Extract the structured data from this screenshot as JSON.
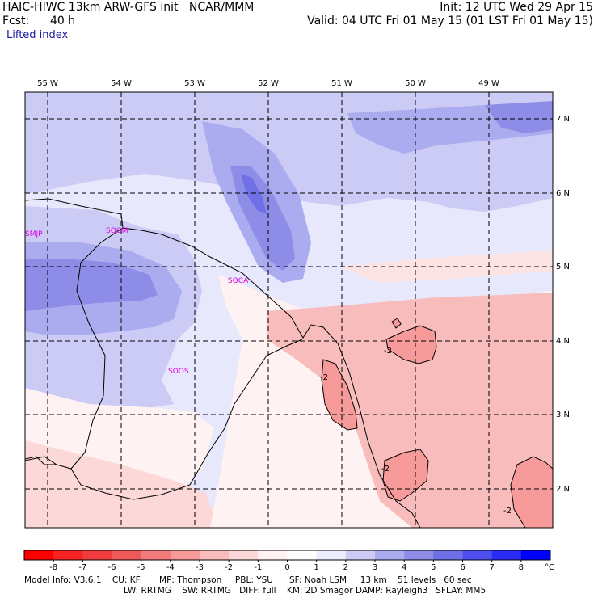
{
  "header": {
    "model": "HAIC-HIWC 13km ARW-GFS init   NCAR/MMM",
    "init": "Init: 12 UTC Wed 29 Apr 15",
    "fcst_label": "Fcst:",
    "fcst_value": "40 h",
    "valid": "Valid: 04 UTC Fri 01 May 15 (01 LST Fri 01 May 15)",
    "field": "Lifted index"
  },
  "map": {
    "lon_labels": [
      "55 W",
      "54 W",
      "53 W",
      "52 W",
      "51 W",
      "50 W",
      "49 W"
    ],
    "lat_labels": [
      "7 N",
      "6 N",
      "5 N",
      "4 N",
      "3 N",
      "2 N"
    ],
    "stations": [
      "SMJP",
      "SOGM",
      "SOCA",
      "SOOS"
    ],
    "contour_label": "-2"
  },
  "colorbar": {
    "tick_labels": [
      "-8",
      "-7",
      "-6",
      "-5",
      "-4",
      "-3",
      "-2",
      "-1",
      "0",
      "1",
      "2",
      "3",
      "4",
      "5",
      "6",
      "7",
      "8"
    ],
    "unit": "°C",
    "colors": [
      "#ff0000",
      "#f82222",
      "#f03c3c",
      "#ee5a5a",
      "#f27a7a",
      "#f69a9a",
      "#f9bcbc",
      "#fcd8d8",
      "#fff2f2",
      "#ececfc",
      "#cbcbf6",
      "#ababf0",
      "#8d8de8",
      "#6f6fe6",
      "#4f4ff0",
      "#2c2cf8",
      "#0000ff"
    ]
  },
  "footer": {
    "line1": "Model Info: V3.6.1    CU: KF       MP: Thompson     PBL: YSU      SF: Noah LSM     13 km    51 levels   60 sec",
    "line2": "LW: RRTMG    SW: RRTMG   DIFF: full    KM: 2D Smagor DAMP: Rayleigh3   SFLAY: MM5"
  }
}
